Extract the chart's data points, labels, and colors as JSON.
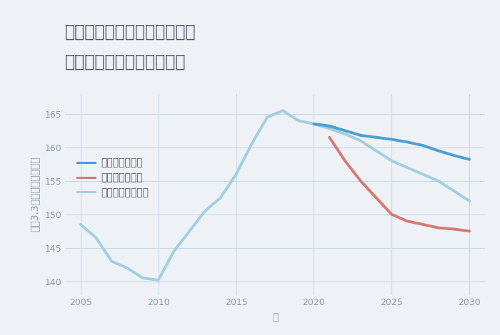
{
  "title_line1": "兵庫県西宮市山口町下山口の",
  "title_line2": "中古マンションの価格推移",
  "ylabel": "平（3.3㎡）単価（万円）",
  "xlabel": "年",
  "background_color": "#eef2f7",
  "plot_background": "#eef2f7",
  "xlim": [
    2004,
    2031
  ],
  "ylim": [
    138,
    168
  ],
  "yticks": [
    140,
    145,
    150,
    155,
    160,
    165
  ],
  "xticks": [
    2005,
    2010,
    2015,
    2020,
    2025,
    2030
  ],
  "good_scenario": {
    "label": "グッドシナリオ",
    "color": "#4a9fd4",
    "linewidth": 2.8,
    "x": [
      2020,
      2021,
      2022,
      2023,
      2024,
      2025,
      2026,
      2027,
      2028,
      2029,
      2030
    ],
    "y": [
      163.5,
      163.2,
      162.5,
      161.8,
      161.5,
      161.2,
      160.8,
      160.3,
      159.5,
      158.8,
      158.2
    ]
  },
  "bad_scenario": {
    "label": "バッドシナリオ",
    "color": "#d47a75",
    "linewidth": 2.8,
    "x": [
      2021,
      2022,
      2023,
      2024,
      2025,
      2026,
      2027,
      2028,
      2029,
      2030
    ],
    "y": [
      161.5,
      158.0,
      155.0,
      152.5,
      150.0,
      149.0,
      148.5,
      148.0,
      147.8,
      147.5
    ]
  },
  "normal_scenario": {
    "label": "ノーマルシナリオ",
    "color": "#a0cfe0",
    "linewidth": 2.8,
    "x": [
      2005,
      2006,
      2007,
      2008,
      2009,
      2010,
      2011,
      2012,
      2013,
      2014,
      2015,
      2016,
      2017,
      2018,
      2019,
      2020,
      2021,
      2022,
      2023,
      2024,
      2025,
      2026,
      2027,
      2028,
      2029,
      2030
    ],
    "y": [
      148.5,
      146.5,
      143.0,
      142.0,
      140.5,
      140.2,
      144.5,
      147.5,
      150.5,
      152.5,
      156.0,
      160.5,
      164.5,
      165.5,
      164.0,
      163.5,
      162.8,
      162.0,
      161.0,
      159.5,
      158.0,
      157.0,
      156.0,
      155.0,
      153.5,
      152.0
    ]
  },
  "grid_color": "#c8d8e8",
  "title_color": "#555566",
  "tick_color": "#8899aa",
  "legend_fontsize": 10,
  "title_fontsize": 17,
  "axis_label_fontsize": 10
}
